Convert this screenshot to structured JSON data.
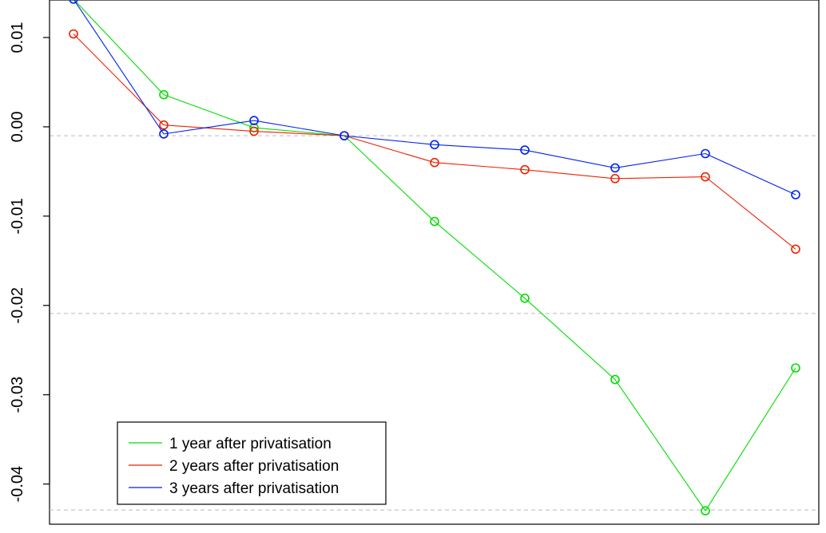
{
  "chart_data": {
    "type": "line",
    "title": "",
    "xlabel": "",
    "ylabel": "",
    "x": [
      1,
      2,
      3,
      4,
      5,
      6,
      7,
      8,
      9
    ],
    "ylim": [
      -0.0445,
      0.0142
    ],
    "yticks": [
      0.01,
      0.0,
      -0.01,
      -0.02,
      -0.03,
      -0.04
    ],
    "ytick_labels": [
      "0.01",
      "0.00",
      "-0.01",
      "-0.02",
      "-0.03",
      "-0.04"
    ],
    "reference_lines": [
      -0.001,
      -0.0209,
      -0.0429
    ],
    "grid": false,
    "legend_position": "bottom-left",
    "series": [
      {
        "name": "1 year after privatisation",
        "color": "#00dd00",
        "values": [
          0.0143,
          0.0036,
          -0.0001,
          -0.001,
          -0.0106,
          -0.0192,
          -0.0283,
          -0.043,
          -0.027
        ]
      },
      {
        "name": "2 years after privatisation",
        "color": "#ee2200",
        "values": [
          0.0104,
          0.0002,
          -0.0005,
          -0.001,
          -0.004,
          -0.0048,
          -0.0058,
          -0.0056,
          -0.0137
        ]
      },
      {
        "name": "3 years after privatisation",
        "color": "#0022ee",
        "values": [
          0.0143,
          -0.0008,
          0.0007,
          -0.001,
          -0.002,
          -0.0026,
          -0.0046,
          -0.003,
          -0.0076
        ]
      }
    ]
  }
}
